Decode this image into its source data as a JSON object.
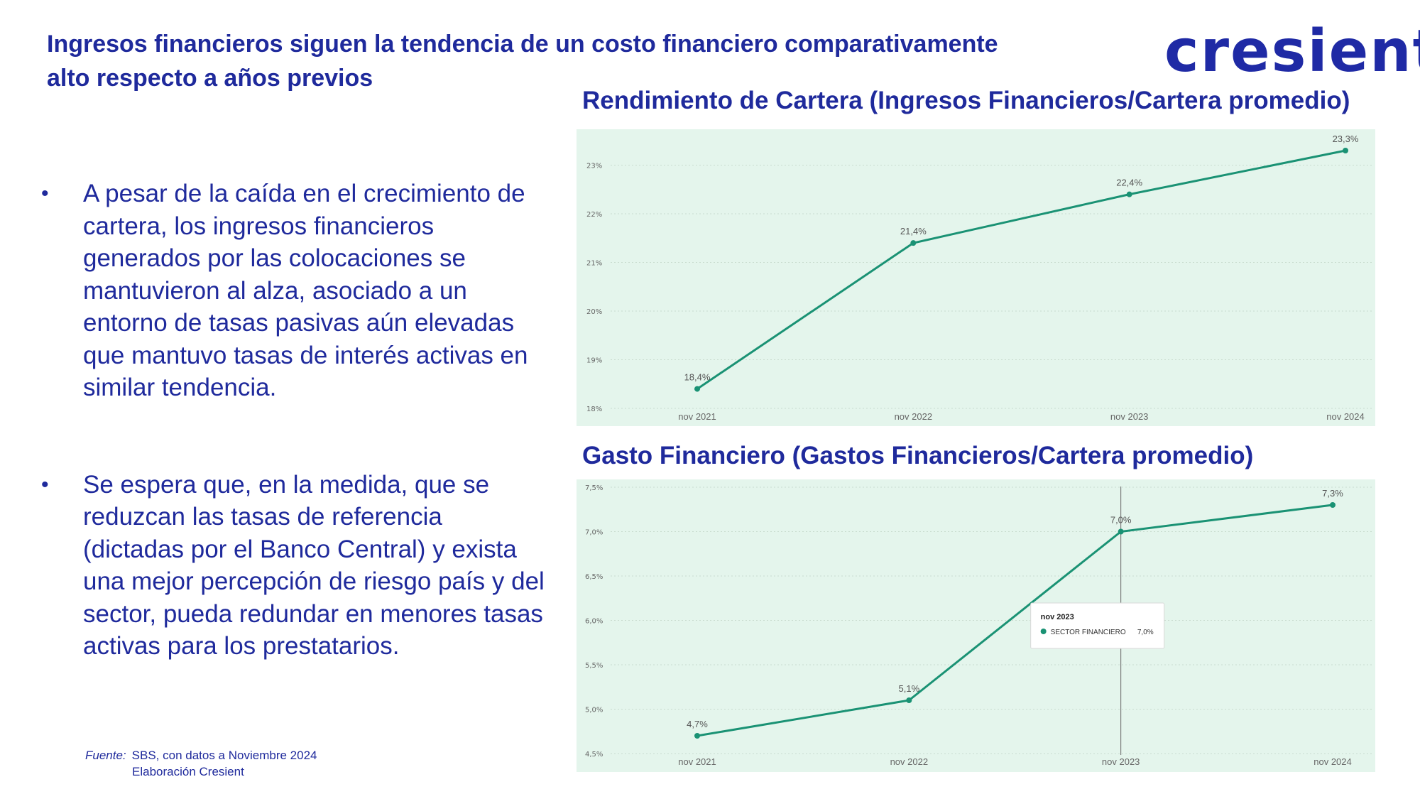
{
  "slide": {
    "title": "Ingresos financieros siguen la tendencia de un costo financiero comparativamente alto respecto a años previos",
    "logo_text": "cresient",
    "bullets": [
      "A pesar de la caída en el crecimiento de cartera, los ingresos financieros generados por las colocaciones se mantuvieron al alza, asociado a un entorno de tasas pasivas aún elevadas que mantuvo tasas de interés activas en similar tendencia.",
      "Se espera que, en la medida, que se reduzcan las tasas de referencia (dictadas por el Banco Central) y exista una mejor percepción de riesgo país y del sector, pueda redundar en menores tasas activas para los prestatarios."
    ],
    "bullet_marker": "•",
    "source_label": "Fuente:",
    "source_line1": "SBS, con datos a Noviembre 2024",
    "source_line2": "Elaboración Cresient"
  },
  "colors": {
    "title": "#1f2a9c",
    "logo": "#1f2aa5",
    "chart_background": "#e4f5ec",
    "series": "#1a9274"
  },
  "chart_data": [
    {
      "type": "line",
      "title": "Rendimiento de Cartera (Ingresos Financieros/Cartera promedio)",
      "categories": [
        "nov 2021",
        "nov 2022",
        "nov 2023",
        "nov 2024"
      ],
      "series": [
        {
          "values": [
            18.4,
            21.4,
            22.4,
            23.3
          ]
        }
      ],
      "data_labels": [
        "18,4%",
        "21,4%",
        "22,4%",
        "23,3%"
      ],
      "yticks": [
        18,
        19,
        20,
        21,
        22,
        23
      ],
      "ytick_labels": [
        "18%",
        "19%",
        "20%",
        "21%",
        "22%",
        "23%"
      ],
      "ylim": [
        18,
        23.3
      ],
      "grid": true,
      "xlabel": "",
      "ylabel": ""
    },
    {
      "type": "line",
      "title": "Gasto Financiero (Gastos Financieros/Cartera promedio)",
      "categories": [
        "nov 2021",
        "nov 2022",
        "nov 2023",
        "nov 2024"
      ],
      "series": [
        {
          "name": "SECTOR FINANCIERO",
          "values": [
            4.7,
            5.1,
            7.0,
            7.3
          ]
        }
      ],
      "data_labels": [
        "4,7%",
        "5,1%",
        "7,0%",
        "7,3%"
      ],
      "yticks": [
        4.5,
        5.0,
        5.5,
        6.0,
        6.5,
        7.0,
        7.5
      ],
      "ytick_labels": [
        "4,5%",
        "5,0%",
        "5,5%",
        "6,0%",
        "6,5%",
        "7,0%",
        "7,5%"
      ],
      "ylim": [
        4.5,
        7.5
      ],
      "grid": true,
      "xlabel": "",
      "ylabel": "",
      "tooltip": {
        "category_index": 2,
        "title": "nov 2023",
        "series_name": "SECTOR FINANCIERO",
        "value_label": "7,0%"
      }
    }
  ]
}
